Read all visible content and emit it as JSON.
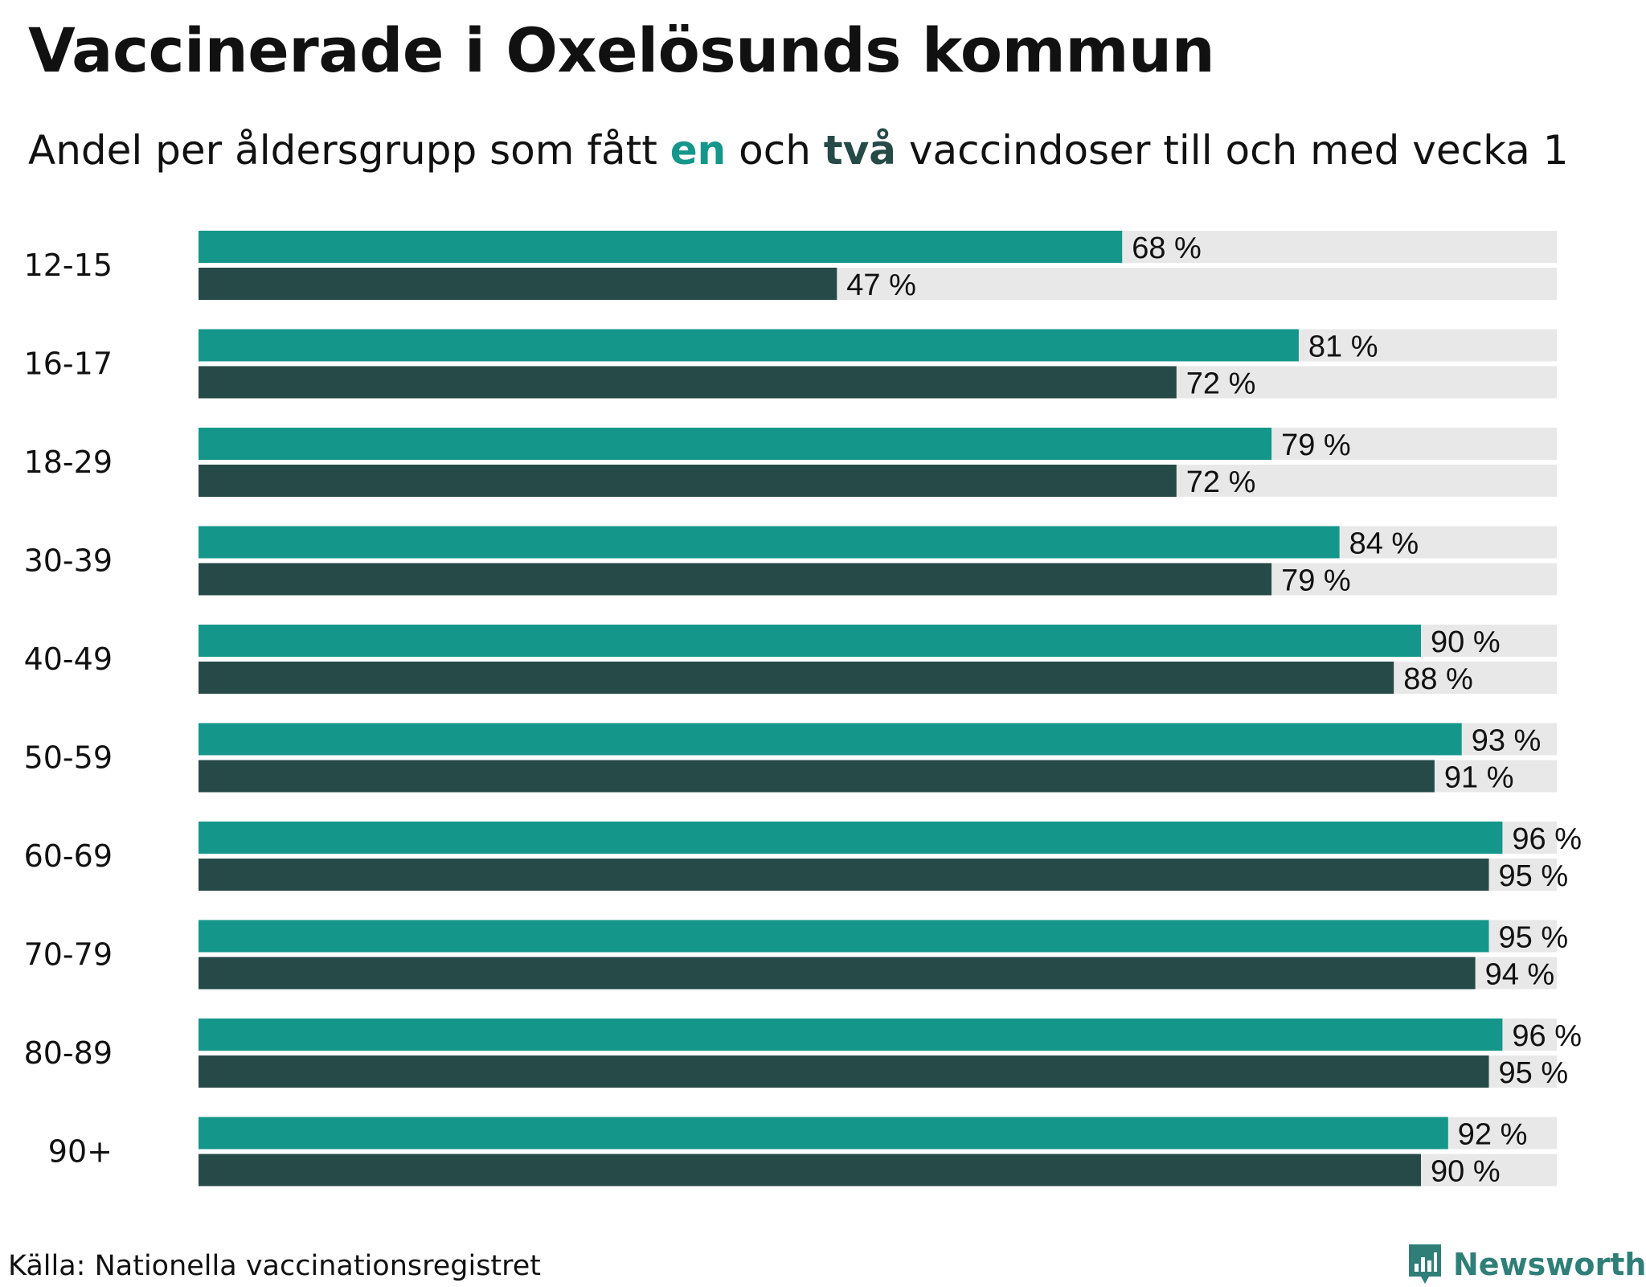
{
  "title": "Vaccinerade i Oxelösunds kommun",
  "subtitle": {
    "before": "Andel per åldersgrupp som fått ",
    "one": "en",
    "middle": " och ",
    "two": "två",
    "after": " vaccindoser till och med vecka 1"
  },
  "source": "Källa: Nationella vaccinationsregistret",
  "brand": "Newsworthy",
  "colors": {
    "one_dose": "#14968a",
    "two_doses": "#264a47",
    "track": "#e8e8e8"
  },
  "chart_data": {
    "type": "bar",
    "orientation": "horizontal",
    "title": "Vaccinerade i Oxelösunds kommun",
    "xlim": [
      0,
      100
    ],
    "unit": "%",
    "categories": [
      "12-15",
      "16-17",
      "18-29",
      "30-39",
      "40-49",
      "50-59",
      "60-69",
      "70-79",
      "80-89",
      "90+"
    ],
    "series": [
      {
        "name": "en",
        "values": [
          68,
          81,
          79,
          84,
          90,
          93,
          96,
          95,
          96,
          92
        ]
      },
      {
        "name": "två",
        "values": [
          47,
          72,
          72,
          79,
          88,
          91,
          95,
          94,
          95,
          90
        ]
      }
    ],
    "value_labels": [
      [
        "68 %",
        "81 %",
        "79 %",
        "84 %",
        "90 %",
        "93 %",
        "96 %",
        "95 %",
        "96 %",
        "92 %"
      ],
      [
        "47 %",
        "72 %",
        "72 %",
        "79 %",
        "88 %",
        "91 %",
        "95 %",
        "94 %",
        "95 %",
        "90 %"
      ]
    ]
  }
}
